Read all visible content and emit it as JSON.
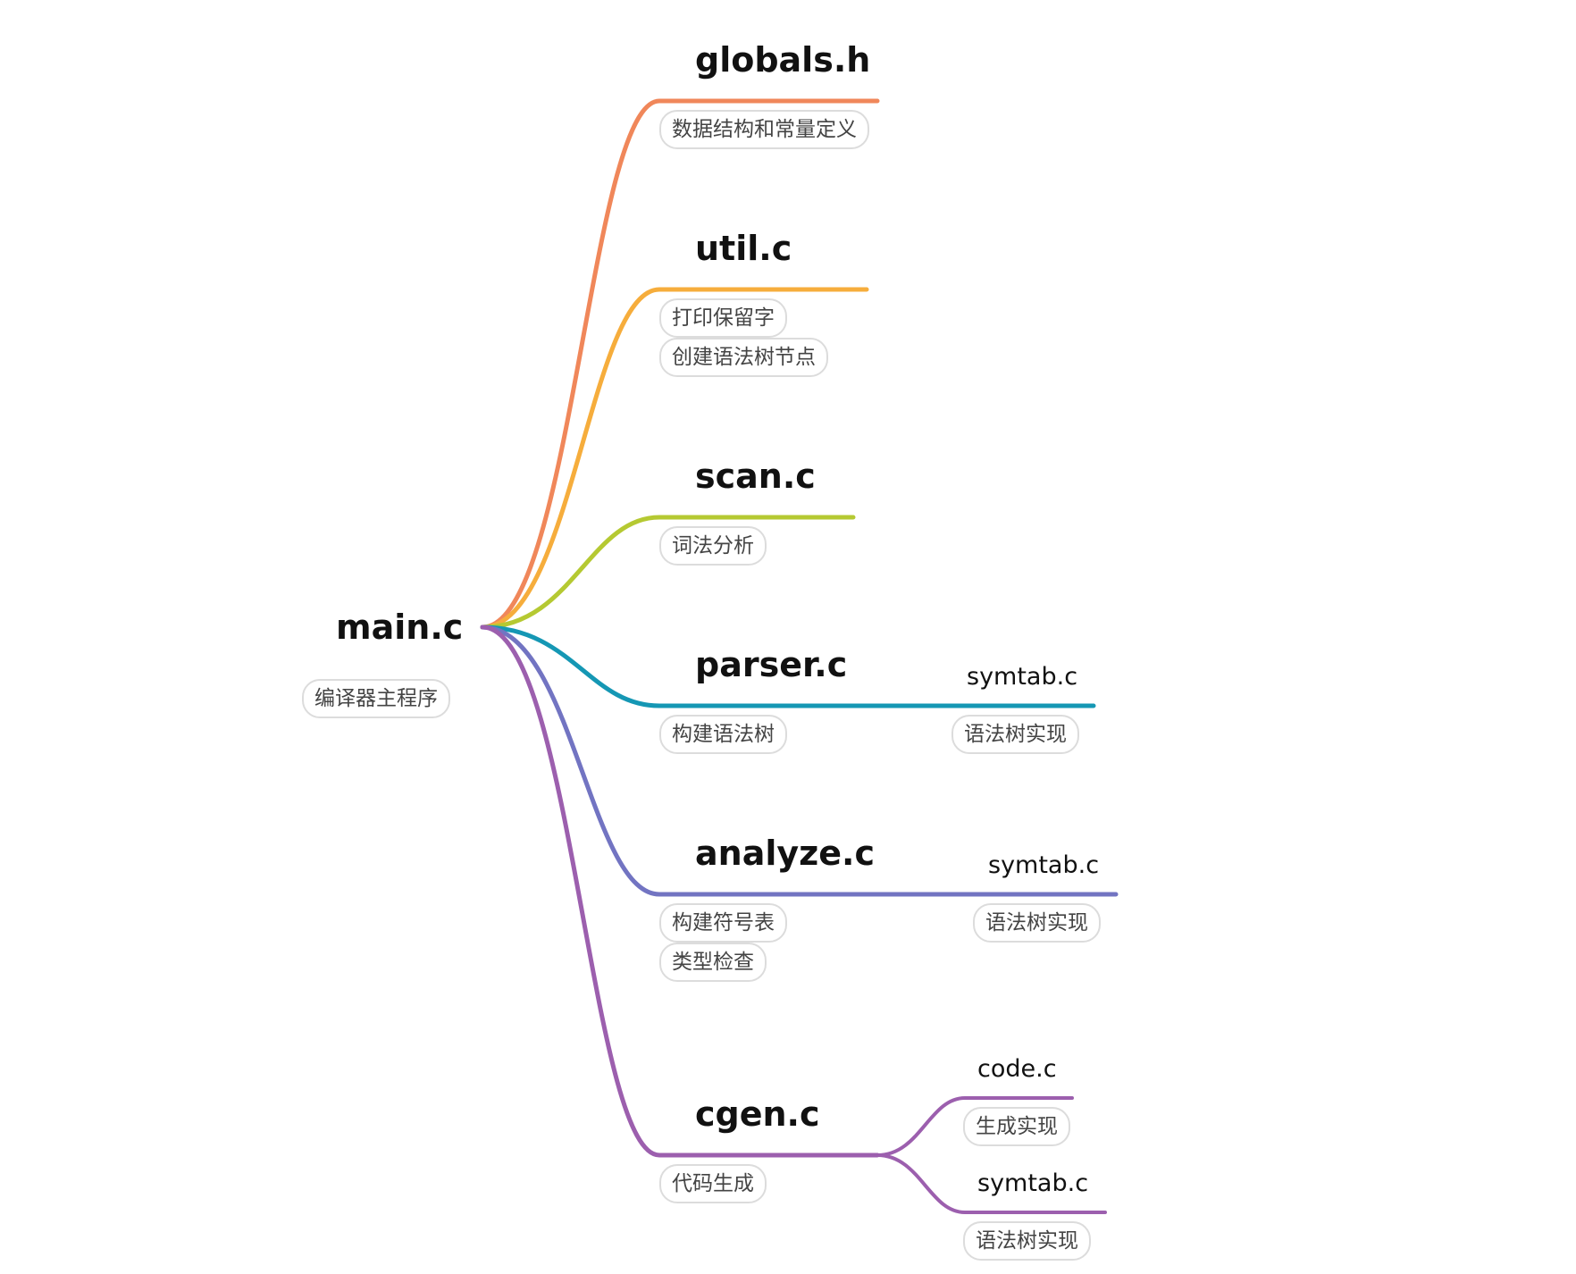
{
  "root": {
    "title": "main.c",
    "note": "编译器主程序"
  },
  "branches": [
    {
      "title": "globals.h",
      "color": "#f0875a",
      "notes": [
        "数据结构和常量定义"
      ]
    },
    {
      "title": "util.c",
      "color": "#f6ad3c",
      "notes": [
        "打印保留字",
        "创建语法树节点"
      ]
    },
    {
      "title": "scan.c",
      "color": "#b5c932",
      "notes": [
        "词法分析"
      ]
    },
    {
      "title": "parser.c",
      "color": "#1597b4",
      "notes": [
        "构建语法树"
      ],
      "child": {
        "title": "symtab.c",
        "note": "语法树实现"
      }
    },
    {
      "title": "analyze.c",
      "color": "#7274c2",
      "notes": [
        "构建符号表",
        "类型检查"
      ],
      "child": {
        "title": "symtab.c",
        "note": "语法树实现"
      }
    },
    {
      "title": "cgen.c",
      "color": "#9c5fae",
      "notes": [
        "代码生成"
      ],
      "children": [
        {
          "title": "code.c",
          "note": "生成实现"
        },
        {
          "title": "symtab.c",
          "note": "语法树实现"
        }
      ]
    }
  ]
}
